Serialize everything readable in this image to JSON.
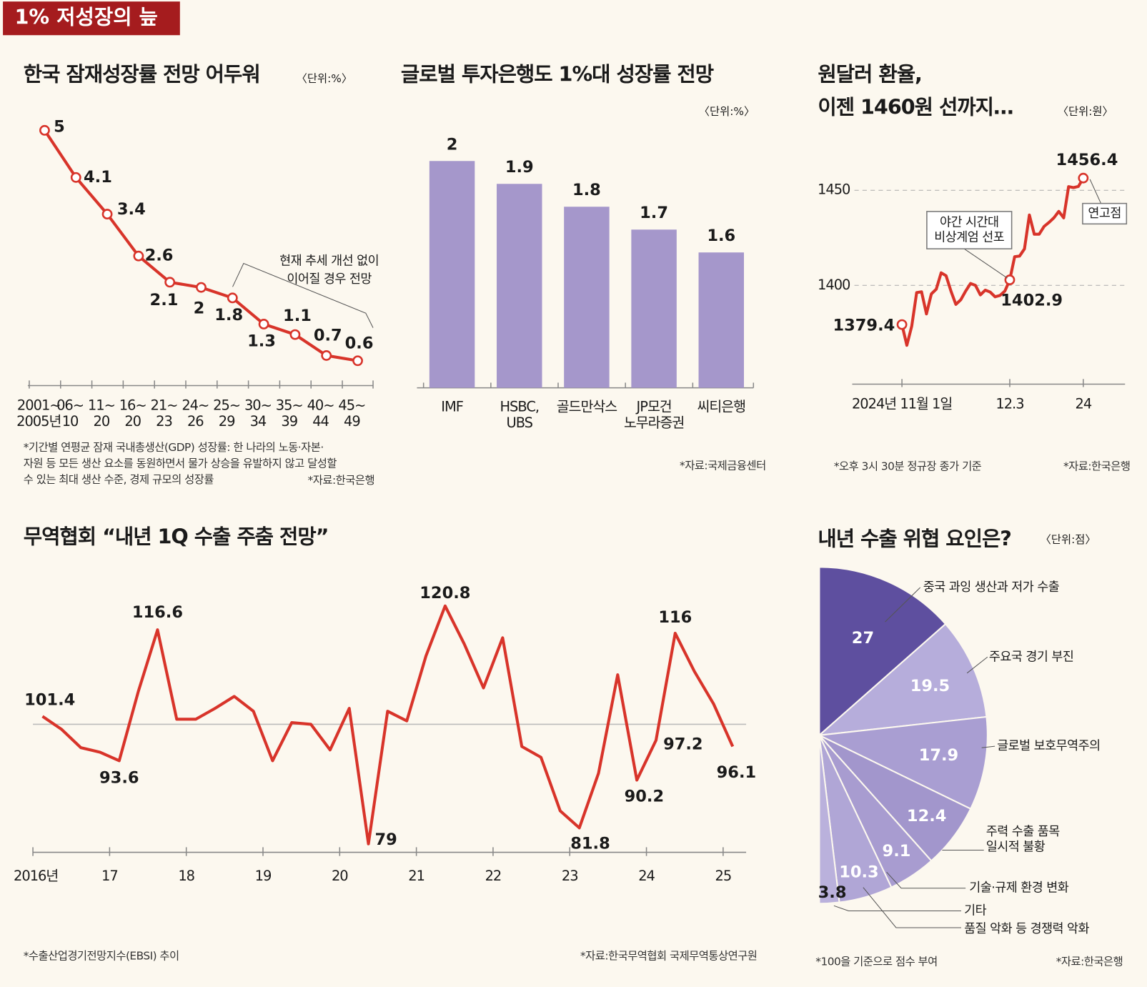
{
  "title": "1% 저성장의 늪",
  "chart_data": [
    {
      "type": "line",
      "title": "한국 잠재성장률 전망 어두워",
      "unit": "〈단위:%〉",
      "categories": [
        [
          "2001~",
          "2005년"
        ],
        [
          "06~",
          "10"
        ],
        [
          "11~",
          "20"
        ],
        [
          "16~",
          "20"
        ],
        [
          "21~",
          "23"
        ],
        [
          "24~",
          "26"
        ],
        [
          "25~",
          "29"
        ],
        [
          "30~",
          "34"
        ],
        [
          "35~",
          "39"
        ],
        [
          "40~",
          "44"
        ],
        [
          "45~",
          "49"
        ]
      ],
      "values": [
        5,
        4.1,
        3.4,
        2.6,
        2.1,
        2,
        1.8,
        1.3,
        1.1,
        0.7,
        0.6
      ],
      "color": "#d8342a",
      "annotation": [
        "현재 추세 개선 없이",
        "이어질 경우 전망"
      ],
      "footnote": [
        "*기간별 연평균 잠재 국내총생산(GDP) 성장률: 한 나라의 노동·자본·",
        "자원 등 모든 생산 요소를 동원하면서 물가 상승을 유발하지 않고 달성할",
        "수 있는 최대 생산 수준, 경제 규모의 성장률"
      ],
      "source": "*자료:한국은행"
    },
    {
      "type": "bar",
      "title": "글로벌 투자은행도 1%대 성장률 전망",
      "unit": "〈단위:%〉",
      "categories": [
        [
          "IMF"
        ],
        [
          "HSBC,",
          "UBS"
        ],
        [
          "골드만삭스"
        ],
        [
          "JP모건",
          "노무라증권"
        ],
        [
          "씨티은행"
        ]
      ],
      "values": [
        2,
        1.9,
        1.8,
        1.7,
        1.6
      ],
      "color": "#a597cb",
      "source": "*자료:국제금융센터"
    },
    {
      "type": "line",
      "title": [
        "원달러 환율,",
        "이젠 1460원 선까지…"
      ],
      "unit": "〈단위:원〉",
      "categories": [
        "2024년 11월 1일",
        null,
        null,
        null,
        null,
        null,
        null,
        null,
        null,
        null,
        null,
        null,
        null,
        null,
        null,
        null,
        null,
        null,
        null,
        null,
        null,
        null,
        "12.3",
        null,
        null,
        null,
        null,
        null,
        null,
        null,
        null,
        null,
        null,
        null,
        null,
        null,
        null,
        "24"
      ],
      "values": [
        1379.4,
        1368.5,
        1378.6,
        1396.2,
        1396.6,
        1385,
        1395.5,
        1398,
        1406.6,
        1405.1,
        1397,
        1390,
        1392.4,
        1397,
        1401,
        1400,
        1395,
        1397.5,
        1396.5,
        1394,
        1394.7,
        1397,
        1402.9,
        1415.1,
        1415.4,
        1419.2,
        1437,
        1426.9,
        1426.9,
        1431,
        1433.1,
        1435.5,
        1438.9,
        1435.5,
        1451.9,
        1451.4,
        1452,
        1456.4
      ],
      "color": "#d8342a",
      "yticks": [
        1400,
        1450
      ],
      "grid": true,
      "annotations": [
        [
          "야간 시간대",
          "비상계엄 선포"
        ],
        "연고점"
      ],
      "footnote": "*오후 3시 30분 정규장 종가 기준",
      "source": "*자료:한국은행"
    },
    {
      "type": "line",
      "title": "무역협회 “내년 1Q 수출 주춤 전망”",
      "x": [
        2016.125,
        2016.375,
        2016.625,
        2016.875,
        2017.125,
        2017.375,
        2017.625,
        2017.875,
        2018.125,
        2018.375,
        2018.625,
        2018.875,
        2019.125,
        2019.375,
        2019.625,
        2019.875,
        2020.125,
        2020.375,
        2020.625,
        2020.875,
        2021.125,
        2021.375,
        2021.625,
        2021.875,
        2022.125,
        2022.375,
        2022.625,
        2022.875,
        2023.125,
        2023.375,
        2023.625,
        2023.875,
        2024.125,
        2024.375,
        2024.625,
        2024.875,
        2025.125
      ],
      "values": [
        101.4,
        99.1,
        95.9,
        95.1,
        93.6,
        105.8,
        116.6,
        100.9,
        100.9,
        102.8,
        104.9,
        102.3,
        93.6,
        100.3,
        100,
        95.5,
        102.8,
        79,
        102.3,
        100.6,
        112,
        120.8,
        114.1,
        106.4,
        115.2,
        96.1,
        94.2,
        84.8,
        81.8,
        91.4,
        108.7,
        90.2,
        97.2,
        116,
        109.3,
        103.6,
        96.1
      ],
      "value_labels": [
        "101.4",
        null,
        null,
        null,
        "93.6",
        null,
        "116.6",
        null,
        null,
        null,
        null,
        null,
        null,
        null,
        null,
        null,
        null,
        "79",
        null,
        null,
        null,
        "120.8",
        null,
        null,
        null,
        null,
        null,
        null,
        "81.8",
        null,
        null,
        "90.2",
        "97.2",
        "116",
        null,
        null,
        "96.1"
      ],
      "color": "#d8342a",
      "reference_line": 100,
      "xlim": [
        2016,
        2025.3
      ],
      "xticks": [
        {
          "value": 2016,
          "label": "2016년"
        },
        {
          "value": 2017,
          "label": "17"
        },
        {
          "value": 2018,
          "label": "18"
        },
        {
          "value": 2019,
          "label": "19"
        },
        {
          "value": 2020,
          "label": "20"
        },
        {
          "value": 2021,
          "label": "21"
        },
        {
          "value": 2022,
          "label": "22"
        },
        {
          "value": 2023,
          "label": "23"
        },
        {
          "value": 2024,
          "label": "24"
        },
        {
          "value": 2025,
          "label": "25"
        }
      ],
      "footnote": "*수출산업경기전망지수(EBSI) 추이",
      "source": "*자료:한국무역협회 국제무역통상연구원"
    },
    {
      "type": "pie",
      "title": "내년 수출 위협 요인은?",
      "unit": "〈단위:점〉",
      "categories": [
        [
          "중국 과잉 생산과 저가 수출"
        ],
        [
          "주요국 경기 부진"
        ],
        [
          "글로벌 보호무역주의"
        ],
        [
          "주력 수출 품목",
          "일시적 불황"
        ],
        [
          "기술·규제 환경 변화"
        ],
        [
          "품질 악화 등 경쟁력 악화"
        ],
        [
          "기타"
        ]
      ],
      "values": [
        27,
        19.5,
        17.9,
        12.4,
        9.1,
        10.3,
        3.8
      ],
      "colors": [
        "#5e4f9f",
        "#b6addb",
        "#a99ed2",
        "#a296cc",
        "#a89cd0",
        "#b0a6d6",
        "#bab1dc"
      ],
      "footnote": "*100을 기준으로 점수 부여",
      "source": "*자료:한국은행"
    }
  ]
}
